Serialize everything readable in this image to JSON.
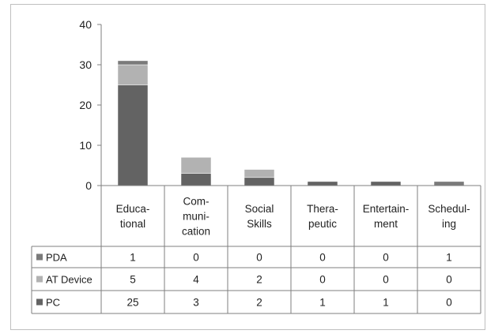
{
  "chart_data": {
    "type": "bar",
    "stacked": true,
    "title": "",
    "xlabel": "",
    "ylabel": "",
    "ylim": [
      0,
      40
    ],
    "yticks": [
      0,
      10,
      20,
      30,
      40
    ],
    "grid": false,
    "legend_placement": "data table rows (left)",
    "categories": [
      [
        "Educa-",
        "tional"
      ],
      [
        "Com-",
        "muni-",
        "cation"
      ],
      [
        "Social",
        "Skills"
      ],
      [
        "Thera-",
        "peutic"
      ],
      [
        "Entertain-",
        "ment"
      ],
      [
        "Schedul-",
        "ing"
      ]
    ],
    "series": [
      {
        "name": "PC",
        "values": [
          25,
          3,
          2,
          1,
          1,
          0
        ],
        "color": "#636363"
      },
      {
        "name": "AT Device",
        "values": [
          5,
          4,
          2,
          0,
          0,
          0
        ],
        "color": "#b2b2b2"
      },
      {
        "name": "PDA",
        "values": [
          1,
          0,
          0,
          0,
          0,
          1
        ],
        "color": "#7a7a7a"
      }
    ],
    "table_row_order": [
      "PDA",
      "AT Device",
      "PC"
    ]
  }
}
